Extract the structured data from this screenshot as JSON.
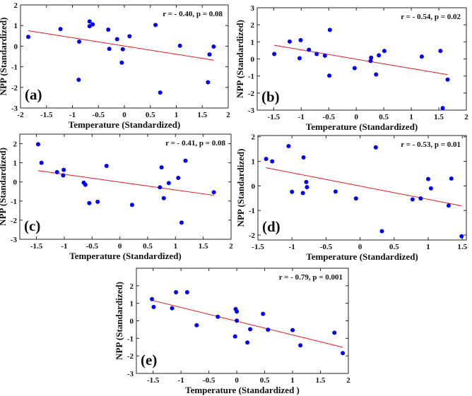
{
  "chart_data": [
    {
      "type": "scatter",
      "panel_label": "(a)",
      "annotation": "r = - 0.40, p = 0.08",
      "xlabel": "Temperature (Standardized)",
      "ylabel": "NPP (Standardized)",
      "xlim": [
        -2,
        2
      ],
      "ylim": [
        -3,
        2
      ],
      "xticks": [
        -2,
        -1.5,
        -1,
        -0.5,
        0,
        0.5,
        1,
        1.5,
        2
      ],
      "yticks": [
        -3,
        -2,
        -1,
        0,
        1,
        2
      ],
      "points": [
        [
          -1.85,
          0.45
        ],
        [
          -1.23,
          0.83
        ],
        [
          -0.87,
          0.22
        ],
        [
          -0.88,
          -1.63
        ],
        [
          -0.67,
          1.2
        ],
        [
          -0.67,
          0.97
        ],
        [
          -0.61,
          1.06
        ],
        [
          -0.31,
          0.8
        ],
        [
          -0.29,
          -0.13
        ],
        [
          -0.14,
          0.34
        ],
        [
          -0.03,
          -0.15
        ],
        [
          -0.05,
          -0.8
        ],
        [
          0.1,
          0.48
        ],
        [
          0.6,
          1.03
        ],
        [
          0.69,
          -2.25
        ],
        [
          1.07,
          0.02
        ],
        [
          1.64,
          -0.4
        ],
        [
          1.61,
          -1.75
        ],
        [
          1.72,
          -0.02
        ]
      ],
      "fit_line": [
        [
          -1.85,
          0.75
        ],
        [
          1.72,
          -0.68
        ]
      ],
      "point_color": "#0000ff",
      "line_color": "#e8151b"
    },
    {
      "type": "scatter",
      "panel_label": "(b)",
      "annotation": "r = - 0.54, p = 0.02",
      "xlabel": "Temperature (Standardized)",
      "ylabel": "NPP (Standardized)",
      "xlim": [
        -1.8,
        2
      ],
      "ylim": [
        -3,
        3
      ],
      "xticks": [
        -1.5,
        -1,
        -0.5,
        0,
        0.5,
        1,
        1.5,
        2
      ],
      "yticks": [
        -3,
        -2,
        -1,
        0,
        1,
        2,
        3
      ],
      "points": [
        [
          -1.49,
          0.29
        ],
        [
          -1.21,
          1.02
        ],
        [
          -1.01,
          1.1
        ],
        [
          -1.03,
          0.04
        ],
        [
          -0.86,
          0.54
        ],
        [
          -0.72,
          0.29
        ],
        [
          -0.57,
          0.19
        ],
        [
          -0.48,
          1.7
        ],
        [
          -0.49,
          -0.98
        ],
        [
          -0.03,
          -0.54
        ],
        [
          0.27,
          0.07
        ],
        [
          0.26,
          -0.12
        ],
        [
          0.41,
          0.21
        ],
        [
          0.36,
          -0.91
        ],
        [
          0.51,
          0.47
        ],
        [
          1.19,
          0.14
        ],
        [
          1.53,
          0.47
        ],
        [
          1.57,
          -2.88
        ],
        [
          1.66,
          -1.21
        ]
      ],
      "fit_line": [
        [
          -1.49,
          0.8
        ],
        [
          1.66,
          -0.92
        ]
      ],
      "point_color": "#0000ff",
      "line_color": "#e8151b"
    },
    {
      "type": "scatter",
      "panel_label": "(c)",
      "annotation": "r = - 0.41, p = 0.08",
      "xlabel": "Temperature (Standardized)",
      "ylabel": "NPP (Standardized)",
      "xlim": [
        -1.8,
        2
      ],
      "ylim": [
        -3,
        2.5
      ],
      "xticks": [
        -1.5,
        -1,
        -0.5,
        0,
        0.5,
        1,
        1.5,
        2
      ],
      "yticks": [
        -3,
        -2,
        -1,
        0,
        1,
        2
      ],
      "points": [
        [
          -1.47,
          1.97
        ],
        [
          -1.41,
          1.0
        ],
        [
          -1.13,
          0.51
        ],
        [
          -1.01,
          0.63
        ],
        [
          -1.02,
          0.34
        ],
        [
          -0.65,
          -0.04
        ],
        [
          -0.62,
          -0.15
        ],
        [
          -0.55,
          -1.11
        ],
        [
          -0.4,
          -1.04
        ],
        [
          -0.24,
          0.84
        ],
        [
          0.22,
          -1.2
        ],
        [
          0.75,
          0.76
        ],
        [
          0.72,
          -0.28
        ],
        [
          0.79,
          -0.85
        ],
        [
          0.88,
          -0.06
        ],
        [
          1.05,
          0.21
        ],
        [
          1.18,
          1.11
        ],
        [
          1.11,
          -2.13
        ],
        [
          1.69,
          -0.54
        ]
      ],
      "fit_line": [
        [
          -1.47,
          0.59
        ],
        [
          1.69,
          -0.7
        ]
      ],
      "point_color": "#0000ff",
      "line_color": "#e8151b"
    },
    {
      "type": "scatter",
      "panel_label": "(d)",
      "annotation": "r = - 0.53, p = 0.01",
      "xlabel": "Temperature (Standardized)",
      "ylabel": "NPP (Standardized)",
      "xlim": [
        -1.5,
        1.56
      ],
      "ylim": [
        -2.2,
        2.05
      ],
      "xticks": [
        -1.5,
        -1,
        -0.5,
        0,
        0.5,
        1,
        1.5
      ],
      "yticks": [
        -2,
        -1,
        0,
        1,
        2
      ],
      "points": [
        [
          -1.38,
          1.1
        ],
        [
          -1.29,
          1.0
        ],
        [
          -1.05,
          1.62
        ],
        [
          -0.83,
          1.16
        ],
        [
          -0.79,
          0.16
        ],
        [
          -0.78,
          -0.05
        ],
        [
          -1.0,
          -0.24
        ],
        [
          -0.84,
          -0.29
        ],
        [
          -0.36,
          -0.23
        ],
        [
          -0.06,
          -0.51
        ],
        [
          0.23,
          1.57
        ],
        [
          0.32,
          -1.84
        ],
        [
          0.77,
          -0.55
        ],
        [
          0.89,
          -0.51
        ],
        [
          1.0,
          0.28
        ],
        [
          1.04,
          -0.1
        ],
        [
          1.34,
          0.3
        ],
        [
          1.3,
          -0.8
        ],
        [
          1.49,
          -2.05
        ]
      ],
      "fit_line": [
        [
          -1.38,
          0.74
        ],
        [
          1.49,
          -0.81
        ]
      ],
      "point_color": "#0000ff",
      "line_color": "#e8151b"
    },
    {
      "type": "scatter",
      "panel_label": "(e)",
      "annotation": "r = - 0.79, p = 0.001",
      "xlabel": "Temperature (Standardized )",
      "ylabel": "NPP (Standardized)",
      "xlim": [
        -1.8,
        2
      ],
      "ylim": [
        -3,
        3
      ],
      "xticks": [
        -1.5,
        -1,
        -0.5,
        0,
        0.5,
        1,
        1.5,
        2
      ],
      "yticks": [
        -3,
        -2,
        -1,
        0,
        1,
        2
      ],
      "points": [
        [
          -1.52,
          1.24
        ],
        [
          -1.49,
          0.79
        ],
        [
          -1.16,
          0.72
        ],
        [
          -1.09,
          1.63
        ],
        [
          -0.89,
          1.63
        ],
        [
          -0.72,
          -0.25
        ],
        [
          -0.34,
          0.23
        ],
        [
          -0.02,
          0.67
        ],
        [
          0.0,
          0.53
        ],
        [
          0.0,
          0.01
        ],
        [
          -0.03,
          -0.89
        ],
        [
          0.19,
          -1.24
        ],
        [
          0.24,
          -0.48
        ],
        [
          0.47,
          0.4
        ],
        [
          0.56,
          -0.51
        ],
        [
          1.0,
          -0.53
        ],
        [
          1.14,
          -1.4
        ],
        [
          1.75,
          -0.68
        ],
        [
          1.9,
          -1.84
        ]
      ],
      "fit_line": [
        [
          -1.52,
          1.17
        ],
        [
          1.9,
          -1.51
        ]
      ],
      "point_color": "#0000ff",
      "line_color": "#e8151b"
    }
  ]
}
